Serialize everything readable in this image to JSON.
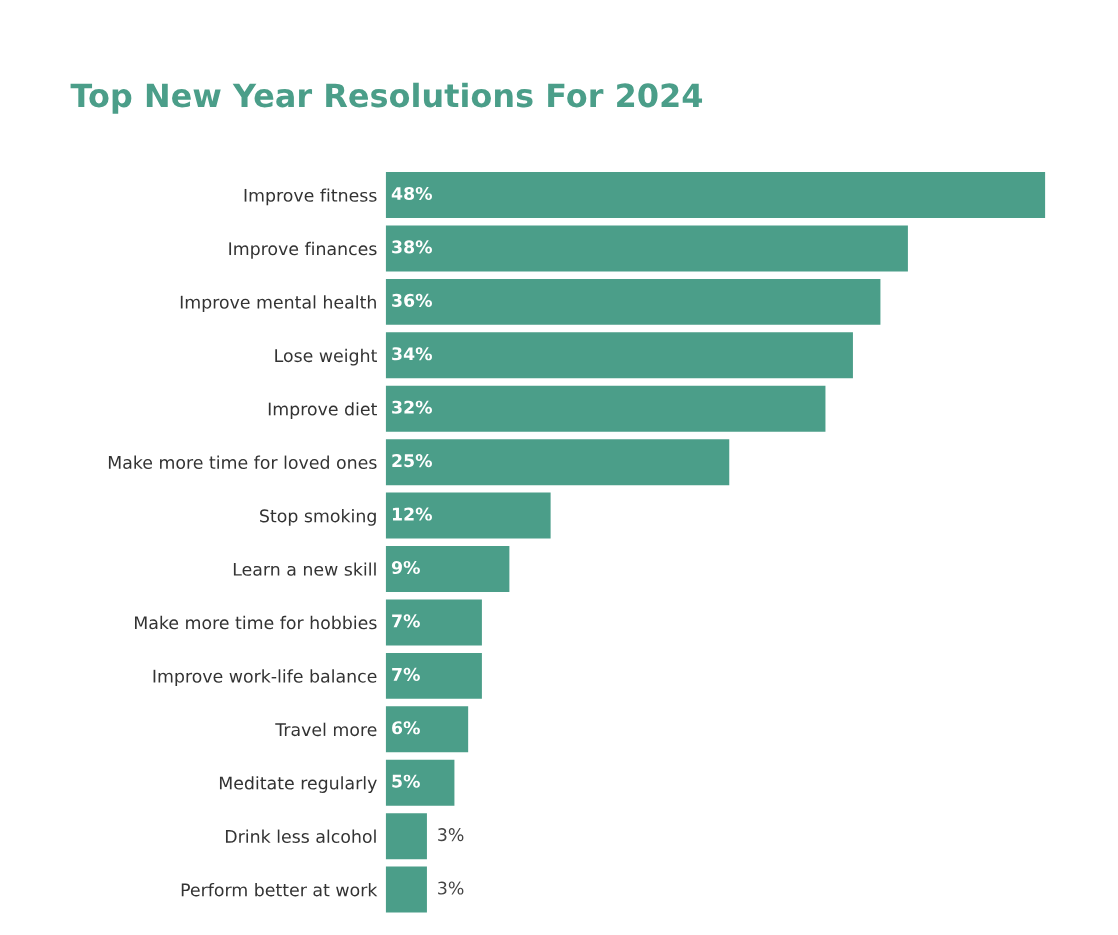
{
  "chart_data": {
    "type": "bar",
    "orientation": "horizontal",
    "title": "Top New Year Resolutions For 2024",
    "categories": [
      "Improve fitness",
      "Improve finances",
      "Improve mental health",
      "Lose weight",
      "Improve diet",
      "Make more time for loved ones",
      "Stop smoking",
      "Learn a new skill",
      "Make more time for hobbies",
      "Improve work-life balance",
      "Travel more",
      "Meditate regularly",
      "Drink less alcohol",
      "Perform better at work"
    ],
    "values": [
      48,
      38,
      36,
      34,
      32,
      25,
      12,
      9,
      7,
      7,
      6,
      5,
      3,
      3
    ],
    "value_labels": [
      "48%",
      "38%",
      "36%",
      "34%",
      "32%",
      "25%",
      "12%",
      "9%",
      "7%",
      "7%",
      "6%",
      "5%",
      "3%",
      "3%"
    ],
    "color": "#4b9e89"
  }
}
